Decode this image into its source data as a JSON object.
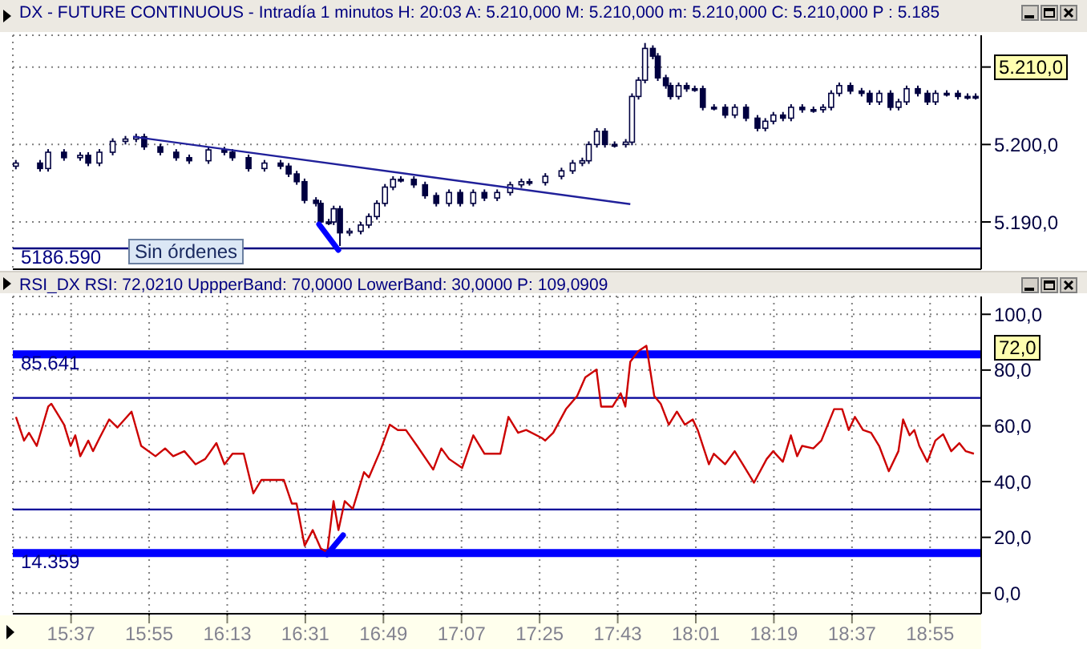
{
  "chart_data": [
    {
      "type": "candlestick",
      "title": "DX - FUTURE CONTINUOUS - Intradía 1 minutos H: 20:03 A: 5.210,000 M: 5.210,000 m: 5.210,000 C: 5.210,000 P : 5.185",
      "series": [
        {
          "color": "#000040",
          "x": [
            15.405,
            15.498,
            15.529,
            15.59,
            15.652,
            15.683,
            15.726,
            15.777,
            15.826,
            15.867,
            15.898,
            15.96,
            16.021,
            16.071,
            16.145,
            16.206,
            16.237,
            16.299,
            16.36,
            16.422,
            16.453,
            16.484,
            16.514,
            16.558,
            16.576,
            16.607,
            16.626,
            16.65,
            16.687,
            16.73,
            16.761,
            16.792,
            16.823,
            16.854,
            16.884,
            16.934,
            16.977,
            17.02,
            17.069,
            17.112,
            17.162,
            17.205,
            17.254,
            17.304,
            17.347,
            17.378,
            17.439,
            17.501,
            17.544,
            17.581,
            17.606,
            17.637,
            17.668,
            17.705,
            17.748,
            17.772,
            17.797,
            17.822,
            17.852,
            17.871,
            17.902,
            17.92,
            17.951,
            17.982,
            18.013,
            18.044,
            18.087,
            18.13,
            18.167,
            18.21,
            18.254,
            18.284,
            18.315,
            18.352,
            18.383,
            18.426,
            18.469,
            18.506,
            18.537,
            18.568,
            18.611,
            18.654,
            18.685,
            18.722,
            18.765,
            18.796,
            18.827,
            18.87,
            18.907,
            18.938,
            18.981,
            19.024,
            19.061,
            19.092
          ],
          "ohlc": [
            [
              5197.2,
              5198.0,
              5196.8,
              5197.6
            ],
            [
              5197.6,
              5198.0,
              5196.5,
              5196.9
            ],
            [
              5196.9,
              5199.4,
              5196.5,
              5199.0
            ],
            [
              5199.0,
              5199.4,
              5197.9,
              5198.3
            ],
            [
              5198.3,
              5199.0,
              5197.9,
              5198.6
            ],
            [
              5198.6,
              5199.0,
              5197.2,
              5197.6
            ],
            [
              5197.6,
              5199.4,
              5197.2,
              5199.0
            ],
            [
              5199.0,
              5200.8,
              5198.6,
              5200.4
            ],
            [
              5200.4,
              5201.1,
              5200.0,
              5200.7
            ],
            [
              5200.7,
              5201.4,
              5200.3,
              5201.0
            ],
            [
              5201.0,
              5201.4,
              5199.3,
              5199.7
            ],
            [
              5199.7,
              5200.1,
              5198.6,
              5199.0
            ],
            [
              5199.0,
              5199.4,
              5197.9,
              5198.3
            ],
            [
              5198.3,
              5198.7,
              5197.5,
              5197.9
            ],
            [
              5197.9,
              5199.7,
              5197.5,
              5199.3
            ],
            [
              5199.3,
              5199.7,
              5198.6,
              5199.0
            ],
            [
              5199.0,
              5199.4,
              5197.9,
              5198.3
            ],
            [
              5198.3,
              5198.7,
              5196.5,
              5196.9
            ],
            [
              5196.9,
              5198.0,
              5196.5,
              5197.6
            ],
            [
              5197.6,
              5198.0,
              5196.8,
              5197.2
            ],
            [
              5197.2,
              5197.6,
              5195.8,
              5196.2
            ],
            [
              5196.2,
              5196.6,
              5194.8,
              5195.2
            ],
            [
              5195.2,
              5195.6,
              5192.4,
              5192.8
            ],
            [
              5192.8,
              5193.2,
              5192.0,
              5192.4
            ],
            [
              5192.4,
              5192.8,
              5189.6,
              5190.0
            ],
            [
              5190.0,
              5190.4,
              5189.6,
              5190.0
            ],
            [
              5190.0,
              5192.1,
              5189.6,
              5191.7
            ],
            [
              5191.7,
              5192.1,
              5186.9,
              5188.6
            ],
            [
              5188.6,
              5189.2,
              5188.2,
              5188.8
            ],
            [
              5188.8,
              5190.0,
              5188.4,
              5189.6
            ],
            [
              5189.6,
              5191.1,
              5189.2,
              5190.7
            ],
            [
              5190.7,
              5192.8,
              5190.3,
              5192.4
            ],
            [
              5192.4,
              5194.9,
              5192.0,
              5194.5
            ],
            [
              5194.5,
              5195.9,
              5194.1,
              5195.5
            ],
            [
              5195.5,
              5195.9,
              5195.1,
              5195.5
            ],
            [
              5195.5,
              5195.9,
              5194.4,
              5194.8
            ],
            [
              5194.8,
              5195.2,
              5193.0,
              5193.4
            ],
            [
              5193.4,
              5193.8,
              5192.0,
              5192.4
            ],
            [
              5192.4,
              5194.2,
              5192.0,
              5193.8
            ],
            [
              5193.8,
              5194.2,
              5192.0,
              5192.4
            ],
            [
              5192.4,
              5194.2,
              5192.0,
              5193.8
            ],
            [
              5193.8,
              5194.2,
              5192.7,
              5193.1
            ],
            [
              5193.1,
              5194.2,
              5192.7,
              5193.8
            ],
            [
              5193.8,
              5195.2,
              5193.4,
              5194.8
            ],
            [
              5194.8,
              5195.6,
              5194.4,
              5195.2
            ],
            [
              5195.2,
              5195.6,
              5194.7,
              5195.1
            ],
            [
              5195.1,
              5196.3,
              5194.7,
              5195.9
            ],
            [
              5195.9,
              5197.0,
              5195.5,
              5196.6
            ],
            [
              5196.6,
              5198.0,
              5196.2,
              5197.6
            ],
            [
              5197.6,
              5198.3,
              5197.2,
              5197.9
            ],
            [
              5197.9,
              5200.4,
              5197.5,
              5200.0
            ],
            [
              5200.0,
              5202.1,
              5199.6,
              5201.7
            ],
            [
              5201.7,
              5202.1,
              5199.6,
              5200.0
            ],
            [
              5200.0,
              5200.4,
              5199.6,
              5200.0
            ],
            [
              5200.0,
              5200.7,
              5199.6,
              5200.3
            ],
            [
              5200.3,
              5206.6,
              5199.9,
              5206.2
            ],
            [
              5206.2,
              5208.7,
              5205.8,
              5208.3
            ],
            [
              5208.3,
              5213.1,
              5207.9,
              5212.4
            ],
            [
              5212.4,
              5212.8,
              5211.0,
              5211.4
            ],
            [
              5211.4,
              5211.8,
              5208.2,
              5208.6
            ],
            [
              5208.6,
              5209.0,
              5207.2,
              5207.6
            ],
            [
              5207.6,
              5208.0,
              5205.8,
              5206.2
            ],
            [
              5206.2,
              5208.0,
              5205.8,
              5207.6
            ],
            [
              5207.6,
              5208.0,
              5206.8,
              5207.2
            ],
            [
              5207.2,
              5207.6,
              5206.8,
              5207.2
            ],
            [
              5207.2,
              5207.6,
              5204.4,
              5204.8
            ],
            [
              5204.8,
              5205.2,
              5204.4,
              5204.8
            ],
            [
              5204.8,
              5205.2,
              5203.4,
              5203.8
            ],
            [
              5203.8,
              5205.2,
              5203.4,
              5204.8
            ],
            [
              5204.8,
              5205.2,
              5203.0,
              5203.4
            ],
            [
              5203.4,
              5203.8,
              5201.7,
              5202.1
            ],
            [
              5202.1,
              5203.4,
              5201.7,
              5203.0
            ],
            [
              5203.0,
              5204.2,
              5202.6,
              5203.8
            ],
            [
              5203.8,
              5204.2,
              5203.0,
              5203.4
            ],
            [
              5203.4,
              5205.2,
              5203.0,
              5204.8
            ],
            [
              5204.8,
              5205.2,
              5204.1,
              5204.5
            ],
            [
              5204.5,
              5204.9,
              5204.1,
              5204.5
            ],
            [
              5204.5,
              5205.2,
              5204.1,
              5204.8
            ],
            [
              5204.8,
              5207.0,
              5204.4,
              5206.6
            ],
            [
              5206.6,
              5208.0,
              5206.2,
              5207.6
            ],
            [
              5207.6,
              5208.0,
              5206.5,
              5206.9
            ],
            [
              5206.9,
              5207.3,
              5206.2,
              5206.6
            ],
            [
              5206.6,
              5207.0,
              5205.1,
              5205.5
            ],
            [
              5205.5,
              5207.0,
              5205.1,
              5206.6
            ],
            [
              5206.6,
              5207.0,
              5204.4,
              5204.8
            ],
            [
              5204.8,
              5205.9,
              5204.4,
              5205.5
            ],
            [
              5205.5,
              5207.6,
              5205.1,
              5207.2
            ],
            [
              5207.2,
              5207.6,
              5206.2,
              5206.6
            ],
            [
              5206.6,
              5207.0,
              5205.1,
              5205.5
            ],
            [
              5205.5,
              5207.0,
              5205.1,
              5206.6
            ],
            [
              5206.6,
              5207.0,
              5206.2,
              5206.6
            ],
            [
              5206.6,
              5207.0,
              5205.8,
              5206.2
            ],
            [
              5206.2,
              5206.6,
              5205.8,
              5206.2
            ],
            [
              5206.2,
              5206.6,
              5205.8,
              5206.2
            ]
          ]
        },
        {
          "type": "line",
          "color": "#20209a",
          "x": [
            15.855,
            17.765
          ],
          "values": [
            5201.0,
            5192.3
          ]
        }
      ],
      "xlim": [
        15.393,
        19.113
      ],
      "xticks": [
        {
          "value": 15.6167,
          "label": null
        },
        {
          "value": 15.9167,
          "label": null
        },
        {
          "value": 16.2167,
          "label": null
        },
        {
          "value": 16.5167,
          "label": null
        },
        {
          "value": 16.8167,
          "label": null
        },
        {
          "value": 17.1167,
          "label": null
        },
        {
          "value": 17.4167,
          "label": null
        },
        {
          "value": 17.7167,
          "label": null
        },
        {
          "value": 18.0167,
          "label": null
        },
        {
          "value": 18.3167,
          "label": null
        },
        {
          "value": 18.6167,
          "label": null
        },
        {
          "value": 18.9167,
          "label": null
        }
      ],
      "ylim": [
        5183.9,
        5214.1
      ],
      "yticks": [
        {
          "value": 5190,
          "label": "5.190,0"
        },
        {
          "value": 5200,
          "label": "5.200,0"
        },
        {
          "value": 5210,
          "label": null
        }
      ],
      "tick_labels": "y",
      "grid": true,
      "ref_lines": [
        {
          "axis": "y",
          "value": 5186.59,
          "label": "5186.590",
          "color": "#000080"
        }
      ],
      "annotations": [
        "Sin órdenes",
        "5.210,0"
      ]
    },
    {
      "type": "line",
      "title": "RSI_DX RSI: 72,0210 UppperBand: 70,0000 LowerBand: 30,0000 P: 109,0909",
      "series": [
        {
          "color": "#cc0000",
          "x": [
            15.405,
            15.436,
            15.455,
            15.485,
            15.529,
            15.541,
            15.572,
            15.59,
            15.615,
            15.633,
            15.652,
            15.683,
            15.701,
            15.726,
            15.763,
            15.795,
            15.849,
            15.886,
            15.941,
            15.978,
            16.009,
            16.052,
            16.095,
            16.132,
            16.175,
            16.206,
            16.237,
            16.28,
            16.317,
            16.348,
            16.434,
            16.465,
            16.483,
            16.514,
            16.545,
            16.576,
            16.601,
            16.625,
            16.644,
            16.668,
            16.699,
            16.742,
            16.761,
            16.804,
            16.841,
            16.872,
            16.903,
            16.946,
            17.008,
            17.039,
            17.069,
            17.119,
            17.162,
            17.205,
            17.266,
            17.297,
            17.334,
            17.365,
            17.426,
            17.438,
            17.469,
            17.518,
            17.561,
            17.592,
            17.635,
            17.653,
            17.697,
            17.728,
            17.746,
            17.765,
            17.796,
            17.827,
            17.857,
            17.882,
            17.913,
            17.944,
            17.975,
            18.005,
            18.024,
            18.067,
            18.086,
            18.129,
            18.166,
            18.197,
            18.24,
            18.289,
            18.314,
            18.351,
            18.382,
            18.406,
            18.425,
            18.468,
            18.499,
            18.548,
            18.579,
            18.604,
            18.628,
            18.659,
            18.69,
            18.721,
            18.758,
            18.795,
            18.813,
            18.838,
            18.856,
            18.875,
            18.906,
            18.937,
            18.967,
            18.998,
            19.029,
            19.054,
            19.085
          ],
          "values": [
            63.2,
            54.7,
            57.5,
            52.8,
            66.9,
            67.9,
            63.2,
            60.4,
            52.8,
            56.6,
            49.1,
            54.7,
            50.9,
            55.6,
            62.3,
            59.4,
            65.1,
            52.8,
            49.1,
            51.9,
            49.1,
            50.9,
            46.2,
            48.1,
            53.8,
            46.2,
            50.0,
            50.0,
            35.8,
            40.6,
            40.6,
            32.1,
            32.1,
            17.0,
            22.6,
            16.0,
            14.7,
            33.0,
            22.6,
            33.0,
            30.2,
            43.4,
            41.5,
            50.9,
            60.4,
            58.5,
            58.5,
            52.8,
            44.3,
            51.9,
            48.1,
            44.9,
            56.6,
            50.0,
            50.0,
            63.2,
            57.5,
            58.5,
            55.6,
            54.7,
            57.5,
            66.0,
            70.7,
            77.4,
            80.2,
            66.9,
            66.9,
            71.7,
            66.9,
            83.0,
            86.8,
            88.7,
            70.7,
            67.9,
            60.4,
            65.1,
            60.4,
            62.3,
            58.5,
            46.2,
            50.0,
            46.2,
            50.9,
            46.2,
            39.6,
            48.1,
            50.9,
            47.1,
            56.6,
            49.1,
            52.8,
            51.9,
            54.7,
            66.0,
            66.0,
            58.5,
            63.2,
            58.5,
            57.5,
            52.8,
            43.7,
            50.9,
            62.3,
            56.6,
            58.5,
            52.8,
            47.1,
            54.7,
            57.0,
            50.9,
            53.8,
            50.9,
            50.0
          ]
        }
      ],
      "xlim": [
        15.393,
        19.113
      ],
      "xticks": [
        {
          "value": 15.6167,
          "label": "15:37"
        },
        {
          "value": 15.9167,
          "label": "15:55"
        },
        {
          "value": 16.2167,
          "label": "16:13"
        },
        {
          "value": 16.5167,
          "label": "16:31"
        },
        {
          "value": 16.8167,
          "label": "16:49"
        },
        {
          "value": 17.1167,
          "label": "17:07"
        },
        {
          "value": 17.4167,
          "label": "17:25"
        },
        {
          "value": 17.7167,
          "label": "17:43"
        },
        {
          "value": 18.0167,
          "label": "18:01"
        },
        {
          "value": 18.3167,
          "label": "18:19"
        },
        {
          "value": 18.6167,
          "label": "18:37"
        },
        {
          "value": 18.9167,
          "label": "18:55"
        }
      ],
      "ylim": [
        -7.4,
        106.4
      ],
      "yticks": [
        {
          "value": 0,
          "label": "0,0"
        },
        {
          "value": 20,
          "label": "20,0"
        },
        {
          "value": 40,
          "label": "40,0"
        },
        {
          "value": 60,
          "label": "60,0"
        },
        {
          "value": 80,
          "label": "80,0"
        },
        {
          "value": 100,
          "label": "100,0"
        }
      ],
      "grid": true,
      "ref_lines": [
        {
          "axis": "y",
          "value": 85.641,
          "label": "85.641",
          "color": "#0000ff"
        },
        {
          "axis": "y",
          "value": 70,
          "color": "#000099"
        },
        {
          "axis": "y",
          "value": 30,
          "color": "#000099"
        },
        {
          "axis": "y",
          "value": 14.359,
          "label": "14.359",
          "color": "#0000ff"
        }
      ],
      "annotations": [
        "72,0"
      ]
    }
  ]
}
